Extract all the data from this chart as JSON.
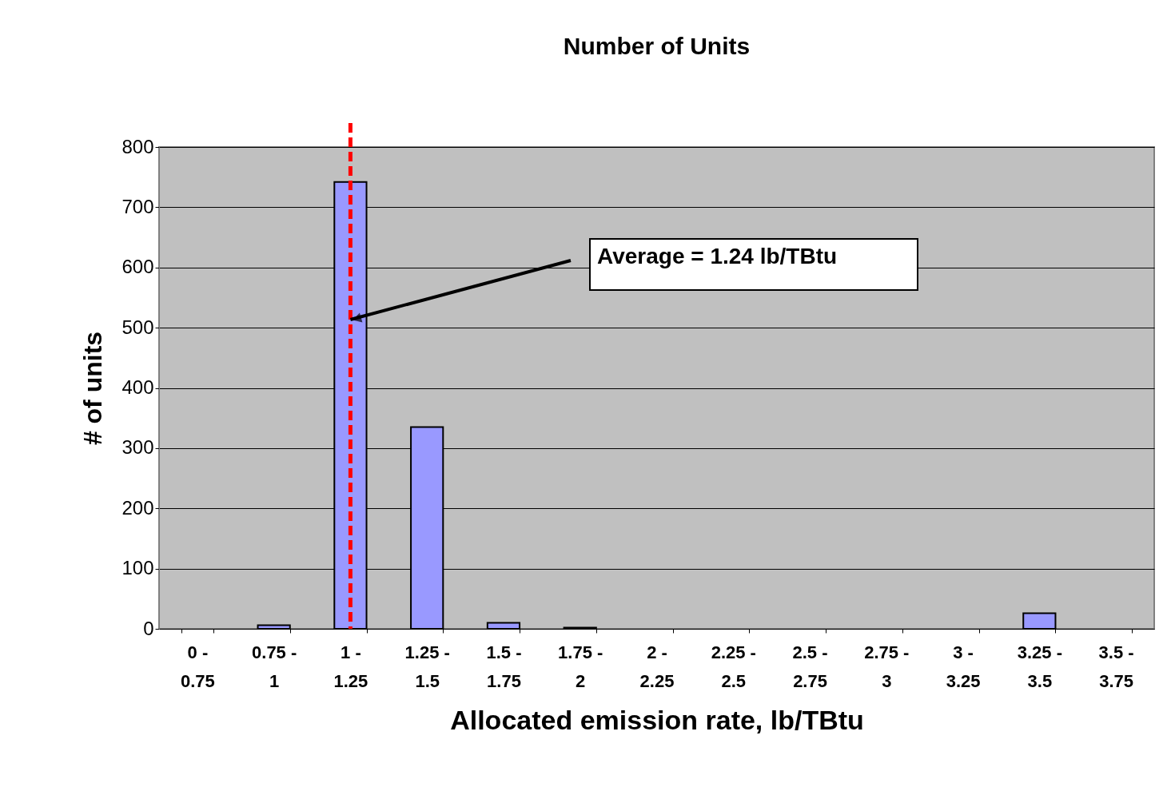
{
  "chart_data": {
    "type": "bar",
    "title": "Number of Units",
    "xlabel": "Allocated emission rate, lb/TBtu",
    "ylabel": "# of units",
    "categories": [
      "0 - 0.75",
      "0.75 - 1",
      "1 - 1.25",
      "1.25 - 1.5",
      "1.5 - 1.75",
      "1.75 - 2",
      "2 - 2.25",
      "2.25 - 2.5",
      "2.5 - 2.75",
      "2.75 - 3",
      "3 - 3.25",
      "3.25 - 3.5",
      "3.5 - 3.75"
    ],
    "values": [
      0,
      6,
      742,
      335,
      10,
      2,
      0,
      0,
      0,
      0,
      0,
      26,
      0
    ],
    "color": "#9999ff",
    "ylim": [
      0,
      800
    ],
    "yticks": [
      0,
      100,
      200,
      300,
      400,
      500,
      600,
      700,
      800
    ],
    "grid": "y",
    "ref_lines": [
      {
        "axis": "x",
        "value": "1 - 1.25",
        "label": "Average = 1.24 lb/TBtu",
        "color": "#ff0000",
        "line_style": "dashed"
      }
    ]
  }
}
